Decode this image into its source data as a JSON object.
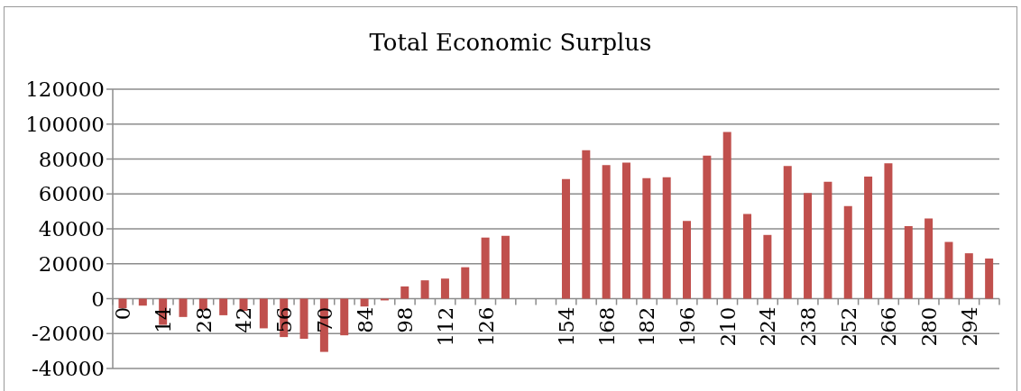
{
  "chart_data": {
    "type": "bar",
    "title": "Total Economic Surplus",
    "categories": [
      "0",
      null,
      "14",
      null,
      "28",
      null,
      "42",
      null,
      "56",
      null,
      "70",
      null,
      "84",
      null,
      "98",
      null,
      "112",
      null,
      "126",
      null,
      null,
      null,
      "154",
      null,
      "168",
      null,
      "182",
      null,
      "196",
      null,
      "210",
      null,
      "224",
      null,
      "238",
      null,
      "252",
      null,
      "266",
      null,
      "280",
      null,
      "294",
      null
    ],
    "values": [
      -5500,
      -4000,
      -15000,
      -10500,
      -6500,
      -9500,
      -7000,
      -17000,
      -22000,
      -23000,
      -30500,
      -21000,
      -4500,
      -1000,
      7000,
      10500,
      11500,
      18000,
      35000,
      36000,
      null,
      null,
      68500,
      85000,
      76500,
      78000,
      69000,
      69500,
      44500,
      82000,
      95500,
      48500,
      36500,
      76000,
      60500,
      67000,
      53000,
      70000,
      77500,
      41500,
      46000,
      32500,
      26000,
      23000
    ],
    "color": "#c0504d",
    "ylim": [
      -40000,
      120000
    ],
    "yticks": [
      -40000,
      -20000,
      0,
      20000,
      40000,
      60000,
      80000,
      100000,
      120000
    ],
    "grid": "y"
  }
}
